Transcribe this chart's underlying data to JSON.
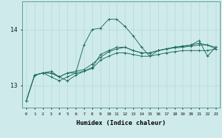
{
  "xlabel": "Humidex (Indice chaleur)",
  "bg_color": "#ceeaea",
  "line_color": "#1e6b60",
  "grid_color": "#b8d8d8",
  "x_ticks": [
    0,
    1,
    2,
    3,
    4,
    5,
    6,
    7,
    8,
    9,
    10,
    11,
    12,
    13,
    14,
    15,
    16,
    17,
    18,
    19,
    20,
    21,
    22,
    23
  ],
  "y_ticks": [
    13,
    14
  ],
  "ylim": [
    12.6,
    14.5
  ],
  "xlim": [
    -0.5,
    23.5
  ],
  "line1_x": [
    0,
    1,
    2,
    3,
    4,
    5,
    6,
    7,
    8,
    9,
    10,
    11,
    12,
    13,
    14,
    15,
    16,
    17,
    18,
    19,
    20,
    21,
    22,
    23
  ],
  "line1_y": [
    12.72,
    13.18,
    13.22,
    13.22,
    13.15,
    13.22,
    13.22,
    13.25,
    13.3,
    13.45,
    13.52,
    13.58,
    13.58,
    13.55,
    13.52,
    13.52,
    13.55,
    13.58,
    13.6,
    13.62,
    13.62,
    13.62,
    13.62,
    13.65
  ],
  "line2_x": [
    0,
    1,
    2,
    3,
    4,
    5,
    6,
    7,
    8,
    9,
    10,
    11,
    12,
    13,
    14,
    15,
    16,
    17,
    18,
    19,
    20,
    21,
    22,
    23
  ],
  "line2_y": [
    12.72,
    13.18,
    13.22,
    13.25,
    13.15,
    13.22,
    13.25,
    13.28,
    13.38,
    13.5,
    13.6,
    13.65,
    13.68,
    13.62,
    13.58,
    13.58,
    13.62,
    13.65,
    13.67,
    13.68,
    13.7,
    13.72,
    13.72,
    13.68
  ],
  "line3_x": [
    0,
    1,
    2,
    3,
    4,
    5,
    6,
    7,
    8,
    9,
    10,
    11,
    12,
    13,
    14,
    15,
    16,
    17,
    18,
    19,
    20,
    21,
    22,
    23
  ],
  "line3_y": [
    12.72,
    13.18,
    13.22,
    13.15,
    13.08,
    13.15,
    13.22,
    13.72,
    14.0,
    14.02,
    14.18,
    14.18,
    14.05,
    13.88,
    13.68,
    13.52,
    13.62,
    13.65,
    13.68,
    13.7,
    13.72,
    13.8,
    13.52,
    13.68
  ],
  "line4_x": [
    1,
    2,
    3,
    4,
    5,
    6,
    7,
    8,
    9,
    10,
    11,
    12,
    13,
    14,
    15,
    16,
    17,
    18,
    19,
    20,
    21,
    22,
    23
  ],
  "line4_y": [
    13.18,
    13.22,
    13.22,
    13.15,
    13.08,
    13.18,
    13.25,
    13.32,
    13.55,
    13.62,
    13.68,
    13.68,
    13.62,
    13.58,
    13.58,
    13.62,
    13.65,
    13.68,
    13.7,
    13.72,
    13.75,
    13.72,
    13.65
  ]
}
